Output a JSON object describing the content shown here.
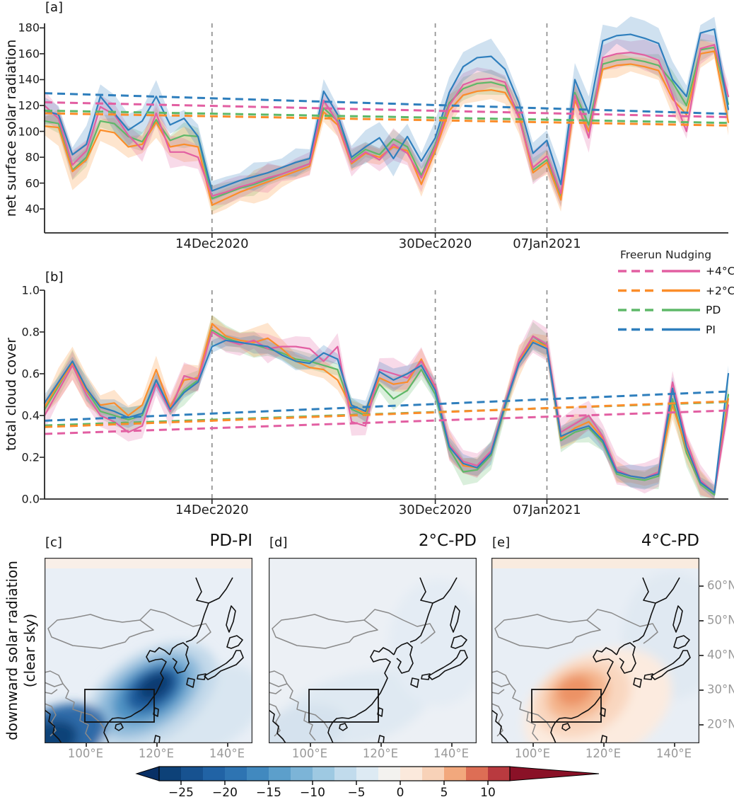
{
  "figure": {
    "panel_a_label": "[a]",
    "panel_b_label": "[b]"
  },
  "legend": {
    "freerun_header": "Freerun",
    "nudging_header": "Nudging",
    "rows": [
      {
        "label": "+4°C",
        "color": "#e25fa2"
      },
      {
        "label": "+2°C",
        "color": "#fb8d2a"
      },
      {
        "label": "PD",
        "color": "#5eb868"
      },
      {
        "label": "PI",
        "color": "#2f7fbd"
      }
    ]
  },
  "chart_data": [
    {
      "type": "line",
      "panel": "a",
      "ylabel": "net surface solar radiation",
      "xlabel": "",
      "n": 50,
      "ylim": [
        21.5,
        183.5
      ],
      "ytick_values": [
        40,
        60,
        80,
        100,
        120,
        140,
        160,
        180
      ],
      "ytick_labels": [
        "40",
        "60",
        "80",
        "100",
        "120",
        "140",
        "160",
        "180"
      ],
      "xticks": [
        {
          "day_index": 12,
          "label": "14Dec2020"
        },
        {
          "day_index": 28,
          "label": "30Dec2020"
        },
        {
          "day_index": 36,
          "label": "07Jan2021"
        }
      ],
      "series": [
        {
          "name": "PD Nudging",
          "scenario": "PD",
          "run": "Nudging",
          "style": "solid",
          "color": "#5eb868",
          "band": 7,
          "values": [
            108,
            106,
            70,
            80,
            108,
            106,
            96,
            92,
            109,
            93,
            97,
            96,
            48,
            52,
            56,
            59,
            63,
            67,
            71,
            75,
            118,
            108,
            78,
            86,
            82,
            94,
            88,
            66,
            90,
            122,
            133,
            137,
            138,
            135,
            113,
            70,
            78,
            50,
            130,
            105,
            152,
            155,
            156,
            154,
            151,
            138,
            120,
            163,
            165,
            121
          ]
        },
        {
          "name": "+2°C Nudging",
          "scenario": "+2°C",
          "run": "Nudging",
          "style": "solid",
          "color": "#fb8d2a",
          "band": 10,
          "values": [
            104,
            103,
            69,
            78,
            101,
            99,
            88,
            90,
            107,
            88,
            90,
            88,
            43,
            48,
            53,
            57,
            61,
            65,
            69,
            73,
            115,
            105,
            75,
            83,
            80,
            88,
            85,
            59,
            85,
            116,
            128,
            131,
            132,
            130,
            112,
            68,
            76,
            47,
            124,
            100,
            148,
            151,
            152,
            150,
            147,
            125,
            113,
            160,
            162,
            107
          ]
        },
        {
          "name": "+4°C Nudging",
          "scenario": "+4°C",
          "run": "Nudging",
          "style": "solid",
          "color": "#e25fa2",
          "band": 9,
          "values": [
            120,
            110,
            74,
            85,
            119,
            113,
            97,
            86,
            114,
            84,
            84,
            80,
            50,
            53,
            57,
            60,
            64,
            67,
            71,
            75,
            124,
            107,
            76,
            84,
            78,
            90,
            83,
            64,
            88,
            120,
            136,
            140,
            141,
            138,
            110,
            72,
            81,
            52,
            128,
            95,
            157,
            160,
            161,
            159,
            155,
            128,
            100,
            164,
            167,
            127
          ]
        },
        {
          "name": "PI Nudging",
          "scenario": "PI",
          "run": "Nudging",
          "style": "solid",
          "color": "#2f7fbd",
          "band": 10,
          "values": [
            116,
            113,
            82,
            90,
            127,
            114,
            101,
            108,
            127,
            105,
            110,
            96,
            54,
            58,
            62,
            65,
            68,
            72,
            76,
            79,
            131,
            113,
            80,
            88,
            95,
            79,
            96,
            77,
            95,
            130,
            150,
            157,
            158,
            148,
            122,
            83,
            93,
            59,
            140,
            114,
            170,
            174,
            175,
            172,
            168,
            140,
            127,
            176,
            179,
            117
          ]
        }
      ],
      "freerun": [
        {
          "name": "PI Freerun",
          "scenario": "PI",
          "run": "Freerun",
          "style": "dashed",
          "color": "#2f7fbd",
          "endpoints": [
            129.5,
            113.5
          ]
        },
        {
          "name": "+4°C Freerun",
          "scenario": "+4°C",
          "run": "Freerun",
          "style": "dashed",
          "color": "#e25fa2",
          "endpoints": [
            122.5,
            111
          ]
        },
        {
          "name": "PD Freerun",
          "scenario": "PD",
          "run": "Freerun",
          "style": "dashed",
          "color": "#5eb868",
          "endpoints": [
            116,
            106.5
          ]
        },
        {
          "name": "+2°C Freerun",
          "scenario": "+2°C",
          "run": "Freerun",
          "style": "dashed",
          "color": "#fb8d2a",
          "endpoints": [
            114,
            104.5
          ]
        }
      ]
    },
    {
      "type": "line",
      "panel": "b",
      "ylabel": "total cloud cover",
      "xlabel": "",
      "n": 50,
      "ylim": [
        0.0,
        1.0
      ],
      "ytick_values": [
        0.0,
        0.2,
        0.4,
        0.6,
        0.8,
        1.0
      ],
      "ytick_labels": [
        "0.0",
        "0.2",
        "0.4",
        "0.6",
        "0.8",
        "1.0"
      ],
      "xticks": [
        {
          "day_index": 12,
          "label": "14Dec2020"
        },
        {
          "day_index": 28,
          "label": "30Dec2020"
        },
        {
          "day_index": 36,
          "label": "07Jan2021"
        }
      ],
      "series": [
        {
          "name": "PD Nudging",
          "scenario": "PD",
          "run": "Nudging",
          "style": "solid",
          "color": "#5eb868",
          "band": 0.05,
          "values": [
            0.43,
            0.54,
            0.66,
            0.52,
            0.42,
            0.4,
            0.38,
            0.4,
            0.57,
            0.43,
            0.52,
            0.57,
            0.81,
            0.77,
            0.75,
            0.74,
            0.72,
            0.7,
            0.67,
            0.66,
            0.64,
            0.62,
            0.43,
            0.4,
            0.55,
            0.48,
            0.52,
            0.62,
            0.5,
            0.24,
            0.13,
            0.14,
            0.21,
            0.44,
            0.66,
            0.78,
            0.73,
            0.28,
            0.32,
            0.34,
            0.27,
            0.12,
            0.1,
            0.09,
            0.11,
            0.48,
            0.22,
            0.07,
            0.02,
            0.5
          ]
        },
        {
          "name": "+2°C Nudging",
          "scenario": "+2°C",
          "run": "Nudging",
          "style": "solid",
          "color": "#fb8d2a",
          "band": 0.055,
          "values": [
            0.44,
            0.55,
            0.65,
            0.52,
            0.45,
            0.46,
            0.4,
            0.45,
            0.62,
            0.44,
            0.57,
            0.58,
            0.84,
            0.78,
            0.76,
            0.75,
            0.77,
            0.72,
            0.66,
            0.63,
            0.62,
            0.57,
            0.44,
            0.41,
            0.58,
            0.55,
            0.56,
            0.67,
            0.53,
            0.26,
            0.16,
            0.15,
            0.22,
            0.45,
            0.66,
            0.76,
            0.73,
            0.29,
            0.34,
            0.37,
            0.29,
            0.13,
            0.11,
            0.1,
            0.12,
            0.45,
            0.24,
            0.08,
            0.03,
            0.48
          ]
        },
        {
          "name": "+4°C Nudging",
          "scenario": "+4°C",
          "run": "Nudging",
          "style": "solid",
          "color": "#e25fa2",
          "band": 0.055,
          "values": [
            0.4,
            0.52,
            0.64,
            0.5,
            0.4,
            0.37,
            0.32,
            0.35,
            0.55,
            0.42,
            0.59,
            0.57,
            0.8,
            0.76,
            0.74,
            0.76,
            0.72,
            0.73,
            0.73,
            0.72,
            0.66,
            0.73,
            0.37,
            0.35,
            0.62,
            0.6,
            0.58,
            0.66,
            0.54,
            0.26,
            0.18,
            0.16,
            0.23,
            0.46,
            0.67,
            0.78,
            0.74,
            0.32,
            0.36,
            0.4,
            0.3,
            0.14,
            0.11,
            0.1,
            0.13,
            0.56,
            0.28,
            0.09,
            0.03,
            0.45
          ]
        },
        {
          "name": "PI Nudging",
          "scenario": "PI",
          "run": "Nudging",
          "style": "solid",
          "color": "#2f7fbd",
          "band": 0.04,
          "values": [
            0.46,
            0.56,
            0.66,
            0.53,
            0.44,
            0.42,
            0.39,
            0.41,
            0.57,
            0.43,
            0.51,
            0.56,
            0.73,
            0.76,
            0.75,
            0.74,
            0.73,
            0.69,
            0.66,
            0.65,
            0.7,
            0.67,
            0.45,
            0.42,
            0.61,
            0.57,
            0.6,
            0.64,
            0.52,
            0.25,
            0.17,
            0.15,
            0.22,
            0.45,
            0.65,
            0.75,
            0.72,
            0.3,
            0.33,
            0.35,
            0.28,
            0.13,
            0.11,
            0.1,
            0.12,
            0.53,
            0.25,
            0.08,
            0.03,
            0.6
          ]
        }
      ],
      "freerun": [
        {
          "name": "PI Freerun",
          "scenario": "PI",
          "run": "Freerun",
          "style": "dashed",
          "color": "#2f7fbd",
          "endpoints": [
            0.375,
            0.515
          ]
        },
        {
          "name": "PD Freerun",
          "scenario": "PD",
          "run": "Freerun",
          "style": "dashed",
          "color": "#5eb868",
          "endpoints": [
            0.352,
            0.465
          ]
        },
        {
          "name": "+2°C Freerun",
          "scenario": "+2°C",
          "run": "Freerun",
          "style": "dashed",
          "color": "#fb8d2a",
          "endpoints": [
            0.345,
            0.468
          ]
        },
        {
          "name": "+4°C Freerun",
          "scenario": "+4°C",
          "run": "Freerun",
          "style": "dashed",
          "color": "#e25fa2",
          "endpoints": [
            0.312,
            0.424
          ]
        }
      ]
    },
    {
      "type": "map",
      "row_label_line1": "downward solar radiation",
      "row_label_line2": "(clear sky)",
      "maps": [
        {
          "panel_label": "[c]",
          "title": "PD-PI",
          "anomaly_sign": "strong negative over SE China"
        },
        {
          "panel_label": "[d]",
          "title": "2°C-PD",
          "anomaly_sign": "near neutral"
        },
        {
          "panel_label": "[e]",
          "title": "4°C-PD",
          "anomaly_sign": "positive over SE China"
        }
      ],
      "lon_ticks": [
        {
          "lon": 100,
          "label": "100°E"
        },
        {
          "lon": 120,
          "label": "120°E"
        },
        {
          "lon": 140,
          "label": "140°E"
        }
      ],
      "lat_ticks": [
        {
          "lat": 60,
          "label": "60°N"
        },
        {
          "lat": 50,
          "label": "50°N"
        },
        {
          "lat": 40,
          "label": "40°N"
        },
        {
          "lat": 30,
          "label": "30°N"
        },
        {
          "lat": 20,
          "label": "20°N"
        }
      ],
      "region_box": {
        "lon_min": 100,
        "lon_max": 119.5,
        "lat_min": 20.5,
        "lat_max": 30
      }
    },
    {
      "type": "colorbar",
      "orientation": "horizontal",
      "range": [
        -27.5,
        12.5
      ],
      "tick_values": [
        -25,
        -20,
        -15,
        -10,
        -5,
        0,
        5,
        10
      ],
      "tick_labels": [
        "−25",
        "−20",
        "−15",
        "−10",
        "−5",
        "0",
        "5",
        "10"
      ],
      "segment_colors": [
        "#0d4178",
        "#175290",
        "#2163a5",
        "#2e74b2",
        "#4189bf",
        "#5c9fcb",
        "#7cb4d7",
        "#9ec9e2",
        "#c1dbec",
        "#ddeaf3",
        "#f3f2ef",
        "#fbe9dc",
        "#f8d2b8",
        "#f2a87d",
        "#dd6e55",
        "#b93a3f"
      ],
      "left_arrow_color": "#083066",
      "right_arrow_color": "#8a1127"
    }
  ]
}
